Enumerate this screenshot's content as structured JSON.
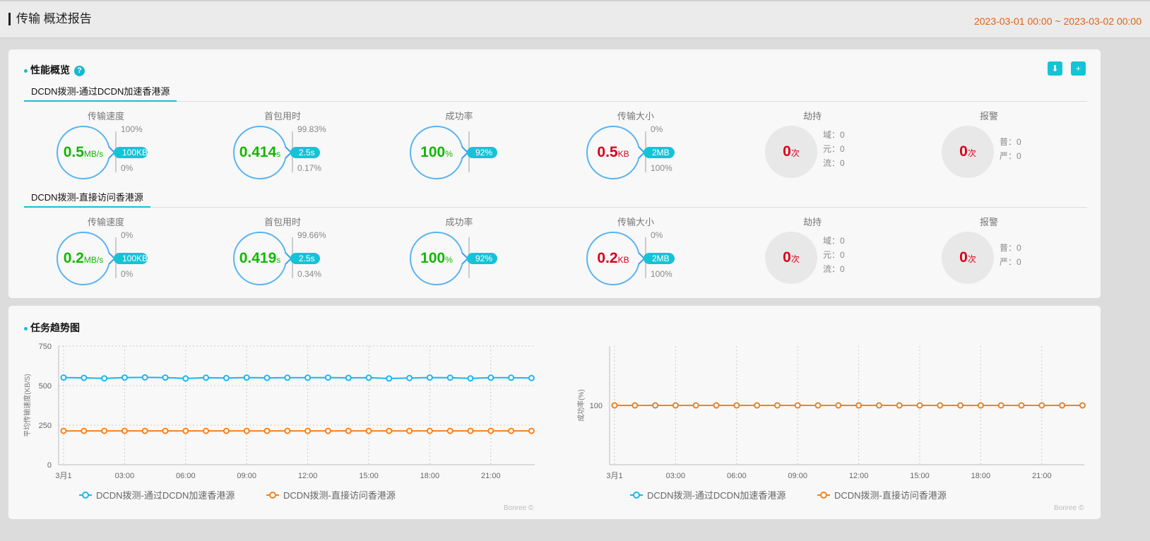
{
  "header": {
    "title": "传输 概述报告",
    "range": "2023-03-01 00:00 ~ 2023-03-02 00:00"
  },
  "overview": {
    "title": "性能概览",
    "help": "?",
    "icons": [
      "download-icon",
      "folder-add-icon"
    ],
    "groups": [
      {
        "name": "DCDN拨测-通过DCDN加速香港源",
        "metrics": [
          {
            "title": "传输速度",
            "value": "0.5",
            "unit": "MB/s",
            "top": "100%",
            "pill": "100KB",
            "bottom": "0%"
          },
          {
            "title": "首包用时",
            "value": "0.414",
            "unit": "s",
            "top": "99.83%",
            "pill": "2.5s",
            "bottom": "0.17%"
          },
          {
            "title": "成功率",
            "value": "100",
            "unit": "%",
            "top": "",
            "pill": "92%",
            "bottom": ""
          },
          {
            "title": "传输大小",
            "value": "0.5",
            "unit": "KB",
            "top": "0%",
            "pill": "2MB",
            "bottom": "100%",
            "red": true
          }
        ],
        "hijack": {
          "title": "劫持",
          "value": "0",
          "unit": "次",
          "lines": [
            "域：0",
            "元：0",
            "流：0"
          ]
        },
        "alarm": {
          "title": "报警",
          "value": "0",
          "unit": "次",
          "lines": [
            "普：0",
            "严：0"
          ]
        }
      },
      {
        "name": "DCDN拨测-直接访问香港源",
        "metrics": [
          {
            "title": "传输速度",
            "value": "0.2",
            "unit": "MB/s",
            "top": "0%",
            "pill": "100KB",
            "bottom": "0%"
          },
          {
            "title": "首包用时",
            "value": "0.419",
            "unit": "s",
            "top": "99.66%",
            "pill": "2.5s",
            "bottom": "0.34%"
          },
          {
            "title": "成功率",
            "value": "100",
            "unit": "%",
            "top": "",
            "pill": "92%",
            "bottom": ""
          },
          {
            "title": "传输大小",
            "value": "0.2",
            "unit": "KB",
            "top": "0%",
            "pill": "2MB",
            "bottom": "100%",
            "red": true
          }
        ],
        "hijack": {
          "title": "劫持",
          "value": "0",
          "unit": "次",
          "lines": [
            "域：0",
            "元：0",
            "流：0"
          ]
        },
        "alarm": {
          "title": "报警",
          "value": "0",
          "unit": "次",
          "lines": [
            "普：0",
            "严：0"
          ]
        }
      }
    ]
  },
  "trend": {
    "title": "任务趋势图",
    "watermark": "Bonree ©"
  },
  "chart_data": [
    {
      "type": "line",
      "ylabel": "平均传输速度(KB/S)",
      "ylim": [
        0,
        750
      ],
      "yticks": [
        0,
        250,
        500,
        750
      ],
      "x": [
        "00:00",
        "01:00",
        "02:00",
        "03:00",
        "04:00",
        "05:00",
        "06:00",
        "07:00",
        "08:00",
        "09:00",
        "10:00",
        "11:00",
        "12:00",
        "13:00",
        "14:00",
        "15:00",
        "16:00",
        "17:00",
        "18:00",
        "19:00",
        "20:00",
        "21:00",
        "22:00",
        "23:00"
      ],
      "xticks": [
        "3月1",
        "03:00",
        "06:00",
        "09:00",
        "12:00",
        "15:00",
        "18:00",
        "21:00"
      ],
      "grid": true,
      "legend": "bottom",
      "series": [
        {
          "name": "DCDN拨测-通过DCDN加速香港源",
          "color": "#1ab6ef",
          "values": [
            551,
            549,
            546,
            551,
            552,
            551,
            545,
            550,
            548,
            551,
            549,
            550,
            550,
            551,
            549,
            550,
            545,
            548,
            551,
            550,
            546,
            550,
            550,
            548
          ]
        },
        {
          "name": "DCDN拨测-直接访问香港源",
          "color": "#f4821f",
          "values": [
            214,
            214,
            214,
            214,
            214,
            214,
            214,
            214,
            214,
            214,
            214,
            214,
            214,
            214,
            214,
            214,
            214,
            214,
            214,
            214,
            214,
            214,
            214,
            214
          ]
        }
      ]
    },
    {
      "type": "line",
      "ylabel": "成功率(%)",
      "ylim": [
        0,
        200
      ],
      "yticks": [
        100
      ],
      "x": [
        "00:00",
        "01:00",
        "02:00",
        "03:00",
        "04:00",
        "05:00",
        "06:00",
        "07:00",
        "08:00",
        "09:00",
        "10:00",
        "11:00",
        "12:00",
        "13:00",
        "14:00",
        "15:00",
        "16:00",
        "17:00",
        "18:00",
        "19:00",
        "20:00",
        "21:00",
        "22:00",
        "23:00"
      ],
      "xticks": [
        "3月1",
        "03:00",
        "06:00",
        "09:00",
        "12:00",
        "15:00",
        "18:00",
        "21:00"
      ],
      "grid": true,
      "legend": "bottom",
      "series": [
        {
          "name": "DCDN拨测-通过DCDN加速香港源",
          "color": "#1ab6ef",
          "values": [
            100,
            100,
            100,
            100,
            100,
            100,
            100,
            100,
            100,
            100,
            100,
            100,
            100,
            100,
            100,
            100,
            100,
            100,
            100,
            100,
            100,
            100,
            100,
            100
          ]
        },
        {
          "name": "DCDN拨测-直接访问香港源",
          "color": "#f4821f",
          "values": [
            100,
            100,
            100,
            100,
            100,
            100,
            100,
            100,
            100,
            100,
            100,
            100,
            100,
            100,
            100,
            100,
            100,
            100,
            100,
            100,
            100,
            100,
            100,
            100
          ]
        }
      ]
    }
  ]
}
